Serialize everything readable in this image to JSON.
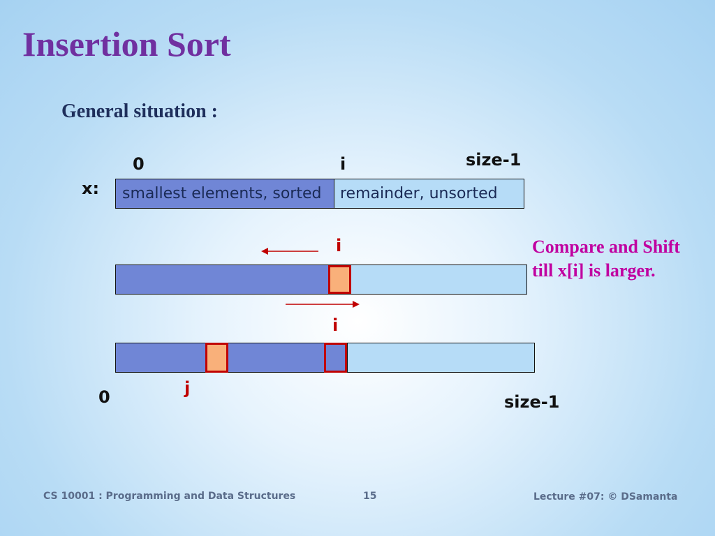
{
  "slide": {
    "title": "Insertion Sort",
    "subtitle": "General situation :"
  },
  "diagram1": {
    "array_label": "x:",
    "label_0": "0",
    "label_i": "i",
    "label_end": "size-1",
    "sorted_text": "smallest elements, sorted",
    "unsorted_text": "remainder, unsorted"
  },
  "diagram2": {
    "label_i": "i",
    "note": "Compare and Shift till x[i] is larger."
  },
  "diagram3": {
    "label_i": "i",
    "label_j": "j",
    "label_0": "0",
    "label_end": "size-1"
  },
  "footer": {
    "course": "CS 10001 : Programming and Data Structures",
    "page": "15",
    "lecture": "Lecture #07: © DSamanta"
  },
  "colors": {
    "title": "#7030a0",
    "sorted": "#7086d6",
    "unsorted": "#b6dcf7",
    "highlight": "#f9b07a",
    "red": "#c00000",
    "note": "#c000a0"
  }
}
